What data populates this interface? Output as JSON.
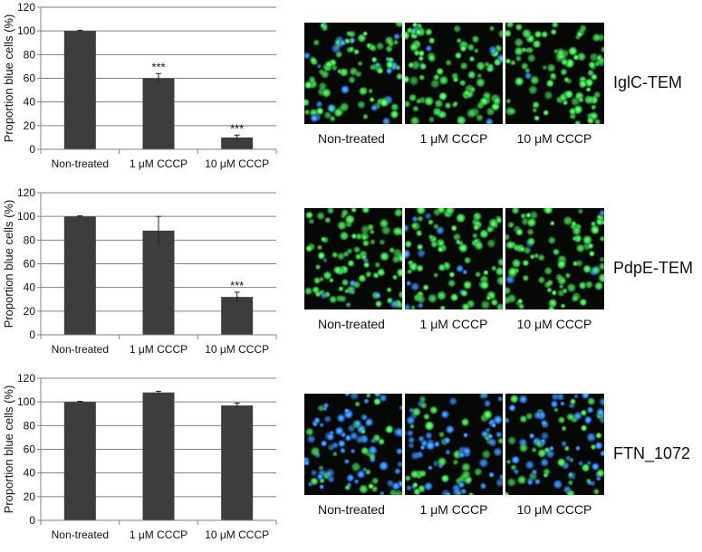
{
  "colors": {
    "bar": "#3d3d3d",
    "axis": "#808080",
    "green": "#22d23a",
    "blue": "#1f6ef0",
    "background": "#050805"
  },
  "chart_data": [
    {
      "type": "bar",
      "construct": "IglC-TEM",
      "categories": [
        "Non-treated",
        "1 μM CCCP",
        "10 μM CCCP"
      ],
      "values": [
        100,
        60,
        10
      ],
      "errors": [
        0.5,
        4,
        2
      ],
      "significance": [
        "",
        "***",
        "***"
      ],
      "ylabel": "Proportion blue cells (%)",
      "ylim": [
        0,
        120
      ],
      "yticks": [
        "0",
        "20",
        "40",
        "60",
        "80",
        "100",
        "120"
      ],
      "grid": true,
      "image_labels": [
        "Non-treated",
        "1 μM CCCP",
        "10 μM CCCP"
      ],
      "blue_fraction": [
        0.18,
        0.1,
        0.02
      ]
    },
    {
      "type": "bar",
      "construct": "PdpE-TEM",
      "categories": [
        "Non-treated",
        "1 μM CCCP",
        "10 μM CCCP"
      ],
      "values": [
        100,
        88,
        32
      ],
      "errors": [
        0.5,
        12,
        4
      ],
      "significance": [
        "",
        "",
        "***"
      ],
      "ylabel": "Proportion blue cells (%)",
      "ylim": [
        0,
        120
      ],
      "yticks": [
        "0",
        "20",
        "40",
        "60",
        "80",
        "100",
        "120"
      ],
      "grid": true,
      "image_labels": [
        "Non-treated",
        "1 μM CCCP",
        "10 μM CCCP"
      ],
      "blue_fraction": [
        0.15,
        0.12,
        0.05
      ]
    },
    {
      "type": "bar",
      "construct": "FTN_1072",
      "categories": [
        "Non-treated",
        "1 μM CCCP",
        "10 μM CCCP"
      ],
      "values": [
        100,
        108,
        97
      ],
      "errors": [
        0.5,
        1,
        2
      ],
      "significance": [
        "",
        "",
        ""
      ],
      "ylabel": "Proportion blue cells (%)",
      "ylim": [
        0,
        120
      ],
      "yticks": [
        "0",
        "20",
        "40",
        "60",
        "80",
        "100",
        "120"
      ],
      "grid": true,
      "image_labels": [
        "Non-treated",
        "1 μM CCCP",
        "10 μM CCCP"
      ],
      "blue_fraction": [
        0.7,
        0.7,
        0.65
      ]
    }
  ]
}
